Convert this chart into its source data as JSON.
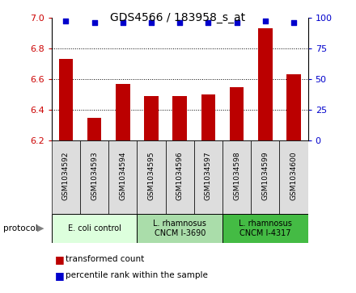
{
  "title": "GDS4566 / 183958_s_at",
  "samples": [
    "GSM1034592",
    "GSM1034593",
    "GSM1034594",
    "GSM1034595",
    "GSM1034596",
    "GSM1034597",
    "GSM1034598",
    "GSM1034599",
    "GSM1034600"
  ],
  "transformed_counts": [
    6.73,
    6.35,
    6.57,
    6.49,
    6.49,
    6.5,
    6.55,
    6.93,
    6.63
  ],
  "percentile_ranks": [
    97,
    96,
    96,
    96,
    96,
    96,
    96,
    97,
    96
  ],
  "ylim_left": [
    6.2,
    7.0
  ],
  "ylim_right": [
    0,
    100
  ],
  "yticks_left": [
    6.2,
    6.4,
    6.6,
    6.8,
    7.0
  ],
  "yticks_right": [
    0,
    25,
    50,
    75,
    100
  ],
  "bar_color": "#bb0000",
  "dot_color": "#0000cc",
  "bar_width": 0.5,
  "protocol_groups": [
    {
      "label": "E. coli control",
      "start": 0,
      "end": 3,
      "color": "#ddffdd"
    },
    {
      "label": "L. rhamnosus\nCNCM I-3690",
      "start": 3,
      "end": 6,
      "color": "#aaddaa"
    },
    {
      "label": "L. rhamnosus\nCNCM I-4317",
      "start": 6,
      "end": 9,
      "color": "#44bb44"
    }
  ],
  "legend_items": [
    {
      "label": "transformed count",
      "color": "#bb0000"
    },
    {
      "label": "percentile rank within the sample",
      "color": "#0000cc"
    }
  ],
  "background_color": "#ffffff",
  "plot_bg_color": "#ffffff",
  "tick_color_left": "#cc0000",
  "tick_color_right": "#0000cc",
  "sample_box_color": "#dddddd",
  "title_fontsize": 10,
  "axis_fontsize": 8,
  "label_fontsize": 7.5
}
